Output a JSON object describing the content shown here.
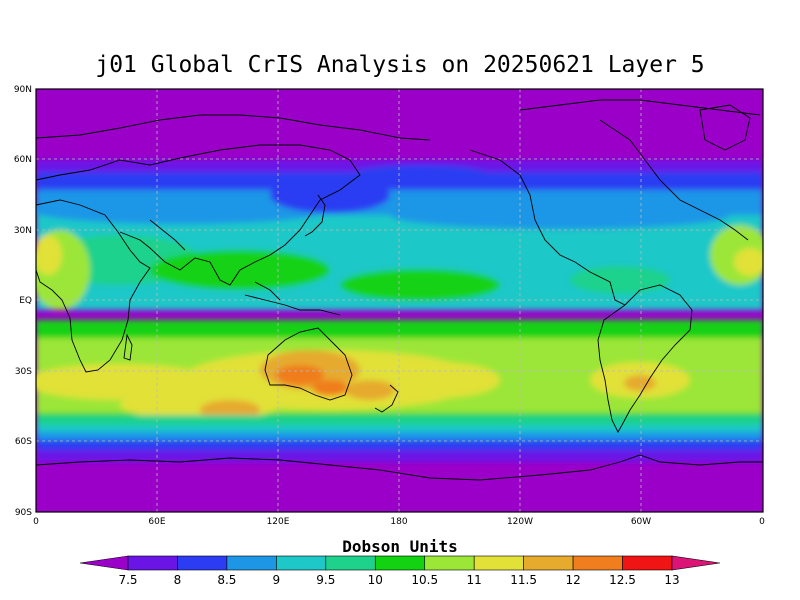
{
  "title": "j01 Global CrIS Analysis on 20250621 Layer 5",
  "colorbar": {
    "title": "Dobson Units",
    "levels": [
      "7.5",
      "8",
      "8.5",
      "9",
      "9.5",
      "10",
      "10.5",
      "11",
      "11.5",
      "12",
      "12.5",
      "13"
    ],
    "colors": [
      "#9b00c9",
      "#6a14e6",
      "#2b3cf2",
      "#1e96e6",
      "#1ec8c8",
      "#1ed28c",
      "#12d212",
      "#9be637",
      "#e1e137",
      "#e6aa2d",
      "#f07d1e",
      "#f01414",
      "#dc1478"
    ]
  },
  "axes": {
    "lat_labels": [
      "90N",
      "60N",
      "30N",
      "EQ",
      "30S",
      "60S",
      "90S"
    ],
    "lon_labels": [
      "0",
      "60E",
      "120E",
      "180",
      "120W",
      "60W",
      "0"
    ]
  },
  "colors": {
    "background": "#9b00c9",
    "grid": "#bbbbbb"
  }
}
